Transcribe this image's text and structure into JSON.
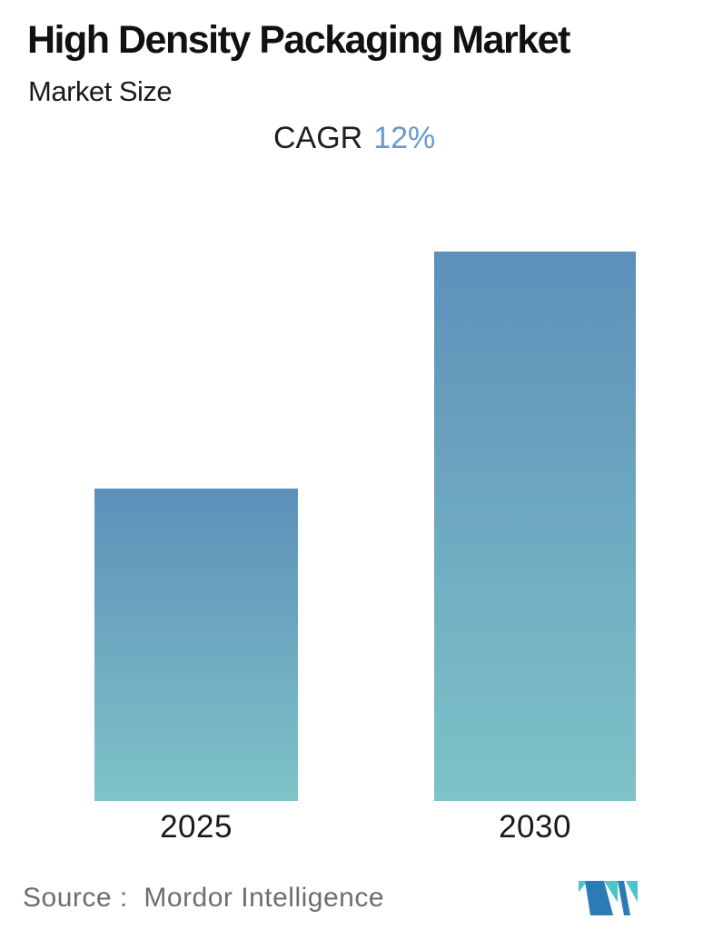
{
  "header": {
    "title": "High Density Packaging Market",
    "subtitle": "Market Size",
    "cagr_label": "CAGR",
    "cagr_value": "12%"
  },
  "chart_data": {
    "type": "bar",
    "title": "High Density Packaging Market - Market Size",
    "categories": [
      "2025",
      "2030"
    ],
    "values": [
      1,
      1.76
    ],
    "values_note": "No y-axis or data labels shown; bar heights are relative, consistent with the stated 12% CAGR from 2025 to 2030 (1.12^5 ≈ 1.76)",
    "annotation": "CAGR 12%",
    "xlabel": "",
    "ylabel": "",
    "axes_shown": false,
    "grid": false,
    "legend_position": "none",
    "bar_gradient_top": "#5d90ba",
    "bar_gradient_bottom": "#7ec3c7"
  },
  "footer": {
    "source_label": "Source :  Mordor Intelligence",
    "logo_name": "mordor-intelligence-logo",
    "logo_blue": "#2b7cb5",
    "logo_teal": "#4cc4c8"
  },
  "colors": {
    "text_primary": "#111111",
    "cagr_value_blue": "#689bcb",
    "text_muted": "#6e6e6e"
  }
}
